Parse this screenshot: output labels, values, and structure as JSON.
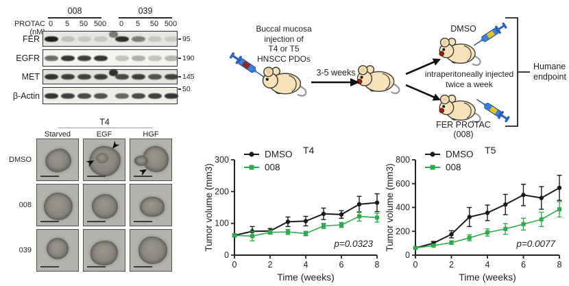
{
  "western_blot": {
    "dose_axis_label": "PROTAC (nM)",
    "groups": [
      {
        "label": "008",
        "doses": [
          "0",
          "5",
          "50",
          "500"
        ]
      },
      {
        "label": "039",
        "doses": [
          "0",
          "5",
          "50",
          "500"
        ]
      }
    ],
    "rows": [
      {
        "protein": "FER",
        "mw": "95",
        "bands": [
          0.95,
          0.18,
          0.14,
          0.15,
          0.88,
          0.5,
          0.15,
          0.12
        ],
        "artifact": 0.55
      },
      {
        "protein": "EGFR",
        "mw": "190",
        "bands": [
          0.6,
          0.85,
          0.8,
          0.85,
          0.22,
          0.3,
          0.22,
          0.28
        ],
        "artifact": 0
      },
      {
        "protein": "MET",
        "mw": "145",
        "bands": [
          0.85,
          0.8,
          0.78,
          0.8,
          0.75,
          0.8,
          0.7,
          0.78
        ],
        "artifact": 0.9
      },
      {
        "protein": "β-Actin",
        "mw": "50",
        "bands": [
          0.85,
          0.8,
          0.75,
          0.7,
          0.62,
          0.75,
          0.8,
          0.85
        ],
        "artifact": 0
      }
    ]
  },
  "organoid_panel": {
    "title": "T4",
    "columns": [
      "Starved",
      "EGF",
      "HGF"
    ],
    "rows": [
      "DMSO",
      "008",
      "039"
    ]
  },
  "diagram": {
    "injection_text": "Buccal mucosa\ninjection of\nT4 or T5\nHNSCC PDOs",
    "arrow_label": "3-5 weeks",
    "branch_top_label": "DMSO",
    "middle_text": "intraperitoneally injected\ntwice a week",
    "branch_bottom_label": "FER PROTAC",
    "branch_bottom_sublabel": "(008)",
    "endpoint_text": "Humane\nendpoint"
  },
  "chart_data": [
    {
      "type": "line",
      "title": "T4",
      "xlabel": "Time (weeks)",
      "ylabel": "Tumor volume (mm3)",
      "x": [
        0,
        1,
        2,
        3,
        4,
        5,
        6,
        7,
        8
      ],
      "xticks": [
        0,
        2,
        4,
        6,
        8
      ],
      "ylim": [
        0,
        300
      ],
      "yticks": [
        0,
        100,
        200,
        300
      ],
      "annotation": "p=0.0323",
      "legend_position": "top-left",
      "grid": false,
      "series": [
        {
          "name": "DMSO",
          "color": "#1a1a1a",
          "marker": "circle",
          "values": [
            62,
            75,
            76,
            105,
            107,
            130,
            128,
            160,
            165
          ],
          "errors": [
            5,
            15,
            8,
            15,
            15,
            18,
            12,
            25,
            28
          ]
        },
        {
          "name": "008",
          "color": "#2faa4d",
          "marker": "square",
          "values": [
            62,
            60,
            72,
            73,
            68,
            92,
            95,
            122,
            118
          ],
          "errors": [
            4,
            15,
            6,
            8,
            7,
            8,
            8,
            15,
            14
          ]
        }
      ]
    },
    {
      "type": "line",
      "title": "T5",
      "xlabel": "Time (weeks)",
      "ylabel": "Tumor volume (mm3)",
      "x": [
        0,
        1,
        2,
        3,
        4,
        5,
        6,
        7,
        8
      ],
      "xticks": [
        0,
        2,
        4,
        6,
        8
      ],
      "ylim": [
        0,
        800
      ],
      "yticks": [
        0,
        200,
        400,
        600,
        800
      ],
      "annotation": "p=0.0077",
      "legend_position": "top-left",
      "grid": false,
      "series": [
        {
          "name": "DMSO",
          "color": "#1a1a1a",
          "marker": "circle",
          "values": [
            60,
            100,
            175,
            320,
            355,
            425,
            505,
            480,
            565
          ],
          "errors": [
            8,
            15,
            30,
            80,
            65,
            85,
            90,
            95,
            105
          ]
        },
        {
          "name": "008",
          "color": "#2faa4d",
          "marker": "square",
          "values": [
            60,
            80,
            105,
            145,
            190,
            220,
            260,
            300,
            385
          ],
          "errors": [
            5,
            10,
            15,
            25,
            30,
            45,
            50,
            60,
            65
          ]
        }
      ]
    }
  ]
}
